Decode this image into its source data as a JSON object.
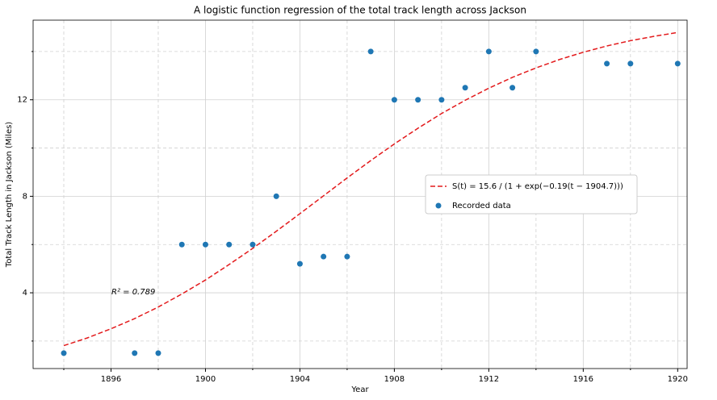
{
  "chart_data": {
    "type": "scatter",
    "title": "A logistic function regression of the total track length across Jackson",
    "xlabel": "Year",
    "ylabel": "Total Track Length in Jackson (Miles)",
    "xlim": [
      1892.7,
      1920.4
    ],
    "ylim": [
      0.86,
      15.3
    ],
    "xticks": [
      1896,
      1900,
      1904,
      1908,
      1912,
      1916,
      1920
    ],
    "yticks": [
      4,
      8,
      12
    ],
    "x_minor_ticks": [
      1894,
      1898,
      1902,
      1906,
      1910,
      1914,
      1918
    ],
    "y_minor_ticks": [
      2,
      6,
      10,
      14
    ],
    "grid": true,
    "legend": "center right",
    "annotation": "R² = 0.789",
    "series": [
      {
        "name": "S(t) = 15.6 / (1 + exp(−0.19(t − 1904.7)))",
        "kind": "line",
        "style": "dashed",
        "color": "#e31a1c",
        "x": [
          1894,
          1895,
          1896,
          1897,
          1898,
          1899,
          1900,
          1901,
          1902,
          1903,
          1904,
          1905,
          1906,
          1907,
          1908,
          1909,
          1910,
          1911,
          1912,
          1913,
          1914,
          1915,
          1916,
          1917,
          1918,
          1919,
          1920
        ],
        "values": [
          1.81,
          2.13,
          2.51,
          2.93,
          3.41,
          3.95,
          4.53,
          5.17,
          5.84,
          6.55,
          7.28,
          8.02,
          8.76,
          9.48,
          10.17,
          10.82,
          11.43,
          11.98,
          12.48,
          12.93,
          13.32,
          13.67,
          13.97,
          14.23,
          14.45,
          14.63,
          14.79
        ]
      },
      {
        "name": "Recorded data",
        "kind": "scatter",
        "color": "#1f77b4",
        "x": [
          1894,
          1897,
          1898,
          1899,
          1900,
          1901,
          1902,
          1903,
          1904,
          1905,
          1906,
          1907,
          1908,
          1909,
          1910,
          1911,
          1912,
          1913,
          1914,
          1917,
          1918,
          1920
        ],
        "values": [
          1.5,
          1.5,
          1.5,
          6,
          6,
          6,
          6,
          8,
          5.2,
          5.5,
          5.5,
          14,
          12,
          12,
          12,
          12.5,
          14,
          12.5,
          14,
          13.5,
          13.5,
          13.5
        ]
      }
    ]
  }
}
